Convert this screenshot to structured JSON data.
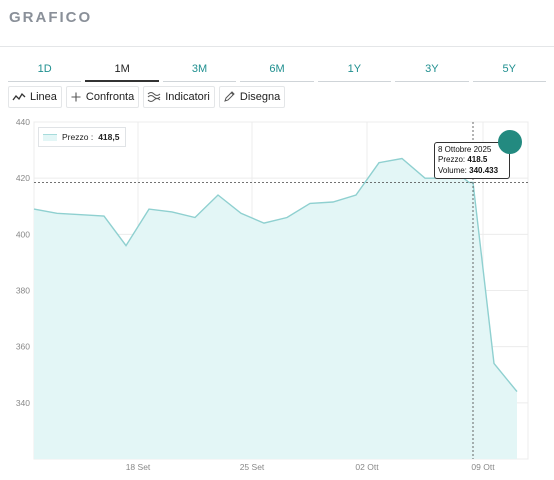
{
  "header": {
    "title": "GRAFICO"
  },
  "tabs": [
    {
      "label": "1D",
      "active": false
    },
    {
      "label": "1M",
      "active": true
    },
    {
      "label": "3M",
      "active": false
    },
    {
      "label": "6M",
      "active": false
    },
    {
      "label": "1Y",
      "active": false
    },
    {
      "label": "3Y",
      "active": false
    },
    {
      "label": "5Y",
      "active": false
    }
  ],
  "toolbar": [
    {
      "label": "Linea",
      "icon": "line-chart-icon"
    },
    {
      "label": "Confronta",
      "icon": "plus-icon"
    },
    {
      "label": "Indicatori",
      "icon": "indicators-icon"
    },
    {
      "label": "Disegna",
      "icon": "pencil-icon"
    }
  ],
  "legend": {
    "label": "Prezzo :",
    "value": "418,5"
  },
  "tooltip": {
    "date": "8 Ottobre 2025",
    "price_label": "Prezzo:",
    "price_value": "418.5",
    "volume_label": "Volume:",
    "volume_value": "340.433"
  },
  "colors": {
    "accent": "#1f8f8f",
    "line": "#8fd0d0",
    "area": "#e3f6f6",
    "dot": "#238a80"
  },
  "chart_data": {
    "type": "area",
    "title": "",
    "xlabel": "",
    "ylabel": "",
    "ylim": [
      320,
      440
    ],
    "yticks": [
      340,
      360,
      380,
      400,
      420,
      440
    ],
    "xtick_labels": [
      "18 Set",
      "25 Set",
      "02 Ott",
      "09 Ott"
    ],
    "grid": true,
    "legend_position": "top-left",
    "crosshair": {
      "x_index": 21,
      "y": 418.5
    },
    "series": [
      {
        "name": "Prezzo",
        "x": [
          "2025-09-10",
          "2025-09-11",
          "2025-09-12",
          "2025-09-15",
          "2025-09-16",
          "2025-09-17",
          "2025-09-18",
          "2025-09-19",
          "2025-09-22",
          "2025-09-23",
          "2025-09-24",
          "2025-09-25",
          "2025-09-26",
          "2025-09-29",
          "2025-09-30",
          "2025-10-01",
          "2025-10-02",
          "2025-10-03",
          "2025-10-06",
          "2025-10-07",
          "2025-10-08",
          "2025-10-08b",
          "2025-10-09",
          "2025-10-10"
        ],
        "values": [
          409,
          407.5,
          407,
          406.5,
          396,
          409,
          408,
          406,
          414,
          407.5,
          404,
          406,
          411,
          411.5,
          414,
          425.5,
          427,
          420,
          420,
          420.5,
          418.5,
          418.5,
          354,
          344
        ]
      }
    ]
  }
}
